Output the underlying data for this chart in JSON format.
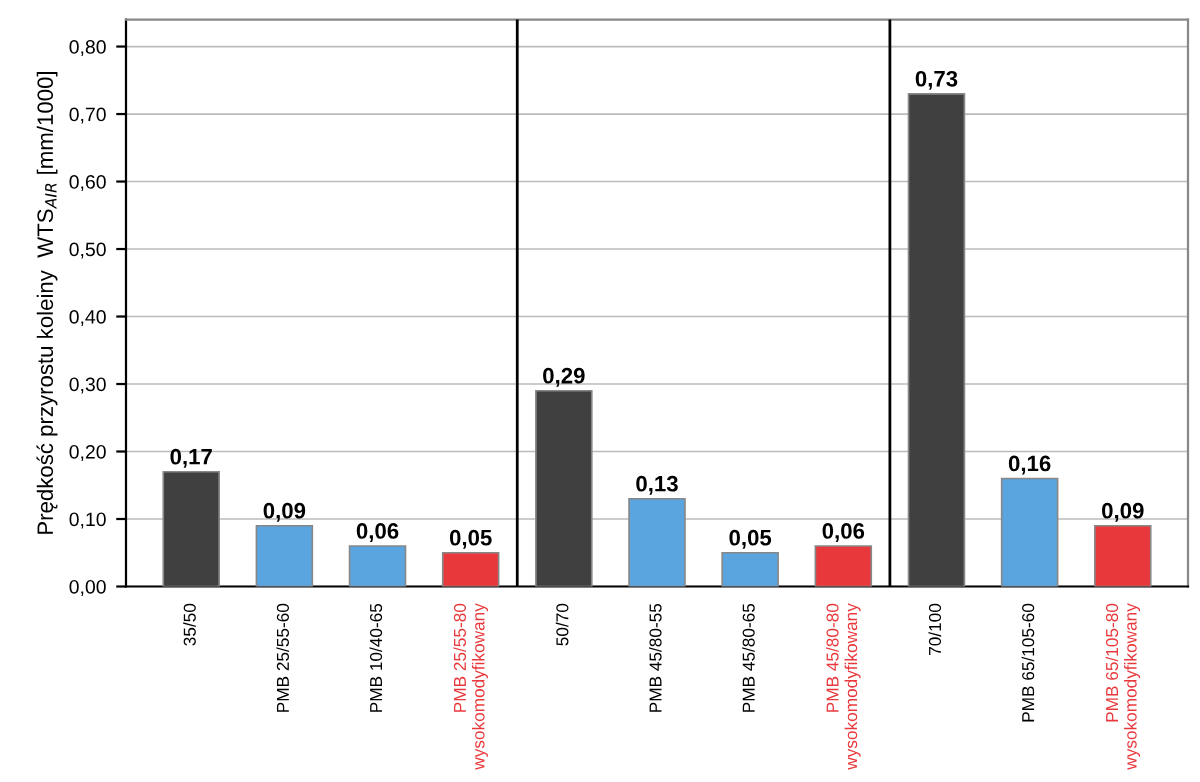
{
  "chart_data": {
    "type": "bar",
    "ylabel": "Prędkość przyrostu koleiny  WTS$_{AIR}$ [mm/1000]",
    "categories": [
      "35/50",
      "PMB 25/55-60",
      "PMB 10/40-65",
      "PMB 25/55-80\nwysokomodyfikowany",
      "50/70",
      "PMB 45/80-55",
      "PMB 45/80-65",
      "PMB 45/80-80\nwysokomodyfikowany",
      "70/100",
      "PMB 65/105-60",
      "PMB 65/105-80\nwysokomodyfikowany"
    ],
    "values": [
      0.17,
      0.09,
      0.06,
      0.05,
      0.29,
      0.13,
      0.05,
      0.06,
      0.73,
      0.16,
      0.09
    ],
    "value_labels": [
      "0,17",
      "0,09",
      "0,06",
      "0,05",
      "0,29",
      "0,13",
      "0,05",
      "0,06",
      "0,73",
      "0,16",
      "0,09"
    ],
    "colors": [
      "#404040",
      "#5aa5e0",
      "#5aa5e0",
      "#e8383c",
      "#404040",
      "#5aa5e0",
      "#5aa5e0",
      "#e8383c",
      "#404040",
      "#5aa5e0",
      "#e8383c"
    ],
    "ylim": [
      0,
      0.84
    ],
    "yticks": [
      {
        "value": 0,
        "label": "0,00"
      },
      {
        "value": 0.1,
        "label": "0,10"
      },
      {
        "value": 0.2,
        "label": "0,20"
      },
      {
        "value": 0.3,
        "label": "0,30"
      },
      {
        "value": 0.4,
        "label": "0,40"
      },
      {
        "value": 0.5,
        "label": "0,50"
      },
      {
        "value": 0.6,
        "label": "0,60"
      },
      {
        "value": 0.7,
        "label": "0,70"
      },
      {
        "value": 0.8,
        "label": "0,80"
      }
    ],
    "grid": "y"
  }
}
